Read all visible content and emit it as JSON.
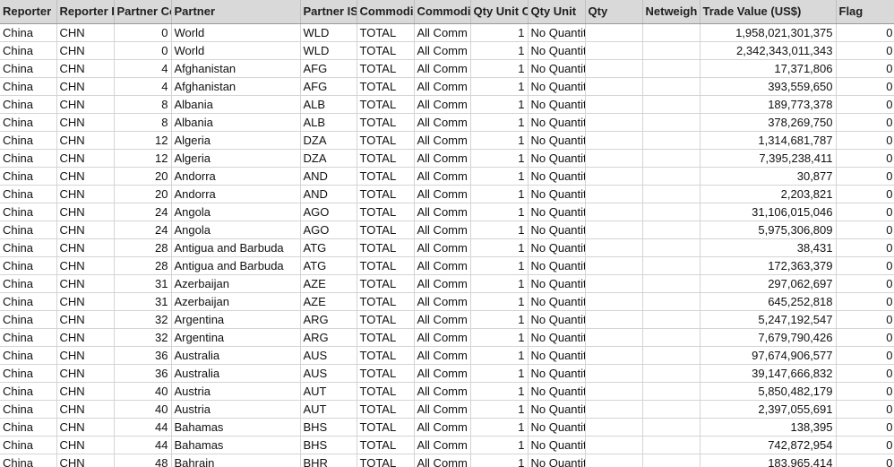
{
  "columns": [
    "Reporter",
    "Reporter I",
    "Partner Co",
    "Partner",
    "Partner IS",
    "Commodi",
    "Commodi",
    "Qty Unit C",
    "Qty Unit",
    "Qty",
    "Netweigh",
    "Trade Value (US$)",
    "Flag"
  ],
  "rows": [
    [
      "China",
      "CHN",
      "0",
      "World",
      "WLD",
      "TOTAL",
      "All Comm",
      "1",
      "No Quantity",
      "",
      "",
      "1,958,021,301,375",
      "0"
    ],
    [
      "China",
      "CHN",
      "0",
      "World",
      "WLD",
      "TOTAL",
      "All Comm",
      "1",
      "No Quantity",
      "",
      "",
      "2,342,343,011,343",
      "0"
    ],
    [
      "China",
      "CHN",
      "4",
      "Afghanistan",
      "AFG",
      "TOTAL",
      "All Comm",
      "1",
      "No Quantity",
      "",
      "",
      "17,371,806",
      "0"
    ],
    [
      "China",
      "CHN",
      "4",
      "Afghanistan",
      "AFG",
      "TOTAL",
      "All Comm",
      "1",
      "No Quantity",
      "",
      "",
      "393,559,650",
      "0"
    ],
    [
      "China",
      "CHN",
      "8",
      "Albania",
      "ALB",
      "TOTAL",
      "All Comm",
      "1",
      "No Quantity",
      "",
      "",
      "189,773,378",
      "0"
    ],
    [
      "China",
      "CHN",
      "8",
      "Albania",
      "ALB",
      "TOTAL",
      "All Comm",
      "1",
      "No Quantity",
      "",
      "",
      "378,269,750",
      "0"
    ],
    [
      "China",
      "CHN",
      "12",
      "Algeria",
      "DZA",
      "TOTAL",
      "All Comm",
      "1",
      "No Quantity",
      "",
      "",
      "1,314,681,787",
      "0"
    ],
    [
      "China",
      "CHN",
      "12",
      "Algeria",
      "DZA",
      "TOTAL",
      "All Comm",
      "1",
      "No Quantity",
      "",
      "",
      "7,395,238,411",
      "0"
    ],
    [
      "China",
      "CHN",
      "20",
      "Andorra",
      "AND",
      "TOTAL",
      "All Comm",
      "1",
      "No Quantity",
      "",
      "",
      "30,877",
      "0"
    ],
    [
      "China",
      "CHN",
      "20",
      "Andorra",
      "AND",
      "TOTAL",
      "All Comm",
      "1",
      "No Quantity",
      "",
      "",
      "2,203,821",
      "0"
    ],
    [
      "China",
      "CHN",
      "24",
      "Angola",
      "AGO",
      "TOTAL",
      "All Comm",
      "1",
      "No Quantity",
      "",
      "",
      "31,106,015,046",
      "0"
    ],
    [
      "China",
      "CHN",
      "24",
      "Angola",
      "AGO",
      "TOTAL",
      "All Comm",
      "1",
      "No Quantity",
      "",
      "",
      "5,975,306,809",
      "0"
    ],
    [
      "China",
      "CHN",
      "28",
      "Antigua and Barbuda",
      "ATG",
      "TOTAL",
      "All Comm",
      "1",
      "No Quantity",
      "",
      "",
      "38,431",
      "0"
    ],
    [
      "China",
      "CHN",
      "28",
      "Antigua and Barbuda",
      "ATG",
      "TOTAL",
      "All Comm",
      "1",
      "No Quantity",
      "",
      "",
      "172,363,379",
      "0"
    ],
    [
      "China",
      "CHN",
      "31",
      "Azerbaijan",
      "AZE",
      "TOTAL",
      "All Comm",
      "1",
      "No Quantity",
      "",
      "",
      "297,062,697",
      "0"
    ],
    [
      "China",
      "CHN",
      "31",
      "Azerbaijan",
      "AZE",
      "TOTAL",
      "All Comm",
      "1",
      "No Quantity",
      "",
      "",
      "645,252,818",
      "0"
    ],
    [
      "China",
      "CHN",
      "32",
      "Argentina",
      "ARG",
      "TOTAL",
      "All Comm",
      "1",
      "No Quantity",
      "",
      "",
      "5,247,192,547",
      "0"
    ],
    [
      "China",
      "CHN",
      "32",
      "Argentina",
      "ARG",
      "TOTAL",
      "All Comm",
      "1",
      "No Quantity",
      "",
      "",
      "7,679,790,426",
      "0"
    ],
    [
      "China",
      "CHN",
      "36",
      "Australia",
      "AUS",
      "TOTAL",
      "All Comm",
      "1",
      "No Quantity",
      "",
      "",
      "97,674,906,577",
      "0"
    ],
    [
      "China",
      "CHN",
      "36",
      "Australia",
      "AUS",
      "TOTAL",
      "All Comm",
      "1",
      "No Quantity",
      "",
      "",
      "39,147,666,832",
      "0"
    ],
    [
      "China",
      "CHN",
      "40",
      "Austria",
      "AUT",
      "TOTAL",
      "All Comm",
      "1",
      "No Quantity",
      "",
      "",
      "5,850,482,179",
      "0"
    ],
    [
      "China",
      "CHN",
      "40",
      "Austria",
      "AUT",
      "TOTAL",
      "All Comm",
      "1",
      "No Quantity",
      "",
      "",
      "2,397,055,691",
      "0"
    ],
    [
      "China",
      "CHN",
      "44",
      "Bahamas",
      "BHS",
      "TOTAL",
      "All Comm",
      "1",
      "No Quantity",
      "",
      "",
      "138,395",
      "0"
    ],
    [
      "China",
      "CHN",
      "44",
      "Bahamas",
      "BHS",
      "TOTAL",
      "All Comm",
      "1",
      "No Quantity",
      "",
      "",
      "742,872,954",
      "0"
    ],
    [
      "China",
      "CHN",
      "48",
      "Bahrain",
      "BHR",
      "TOTAL",
      "All Comm",
      "1",
      "No Quantity",
      "",
      "",
      "183,965,414",
      "0"
    ]
  ]
}
